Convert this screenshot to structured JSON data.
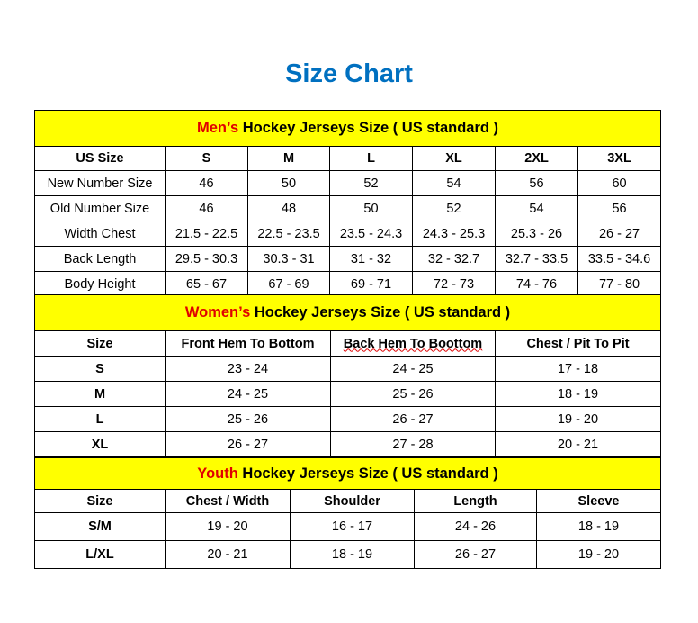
{
  "title": "Size Chart",
  "colors": {
    "title": "#0070C0",
    "band": "#FFFF00",
    "accent": "#E00000"
  },
  "men": {
    "prefix": "Men’s",
    "heading": "Hockey Jerseys Size ( US standard )",
    "columns": [
      "US Size",
      "S",
      "M",
      "L",
      "XL",
      "2XL",
      "3XL"
    ],
    "rows": [
      [
        "New Number Size",
        "46",
        "50",
        "52",
        "54",
        "56",
        "60"
      ],
      [
        "Old Number Size",
        "46",
        "48",
        "50",
        "52",
        "54",
        "56"
      ],
      [
        "Width Chest",
        "21.5 - 22.5",
        "22.5 - 23.5",
        "23.5 - 24.3",
        "24.3 - 25.3",
        "25.3 - 26",
        "26 - 27"
      ],
      [
        "Back Length",
        "29.5 - 30.3",
        "30.3 - 31",
        "31 - 32",
        "32 - 32.7",
        "32.7 - 33.5",
        "33.5 - 34.6"
      ],
      [
        "Body Height",
        "65 - 67",
        "67 - 69",
        "69 - 71",
        "72 - 73",
        "74 - 76",
        "77 - 80"
      ]
    ]
  },
  "women": {
    "prefix": "Women’s",
    "heading": "Hockey Jerseys Size ( US standard )",
    "columns": [
      "Size",
      "Front Hem To Bottom",
      "Back Hem To Boottom",
      "Chest / Pit To Pit"
    ],
    "rows": [
      [
        "S",
        "23 - 24",
        "24 - 25",
        "17 - 18"
      ],
      [
        "M",
        "24 - 25",
        "25 - 26",
        "18 - 19"
      ],
      [
        "L",
        "25 - 26",
        "26 - 27",
        "19 - 20"
      ],
      [
        "XL",
        "26 - 27",
        "27 - 28",
        "20 - 21"
      ]
    ]
  },
  "youth": {
    "prefix": "Youth",
    "heading": "Hockey Jerseys Size ( US standard )",
    "columns": [
      "Size",
      "Chest / Width",
      "Shoulder",
      "Length",
      "Sleeve"
    ],
    "rows": [
      [
        "S/M",
        "19 - 20",
        "16 - 17",
        "24 - 26",
        "18 - 19"
      ],
      [
        "L/XL",
        "20 - 21",
        "18 - 19",
        "26 - 27",
        "19 - 20"
      ]
    ]
  }
}
